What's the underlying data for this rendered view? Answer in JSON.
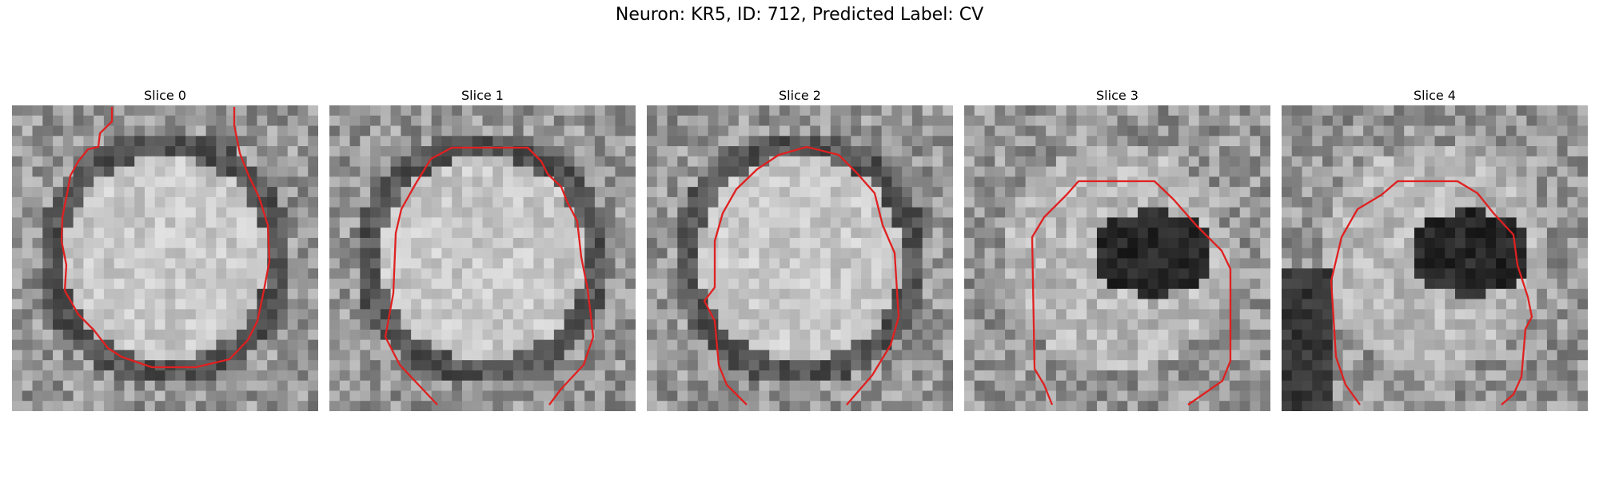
{
  "figure": {
    "title": "Neuron: KR5, ID: 712, Predicted Label: CV"
  },
  "contour_color": "#e02020",
  "panels": [
    {
      "title": "Slice 0",
      "seed": 11,
      "scene": "ring"
    },
    {
      "title": "Slice 1",
      "seed": 23,
      "scene": "ring"
    },
    {
      "title": "Slice 2",
      "seed": 37,
      "scene": "ring"
    },
    {
      "title": "Slice 3",
      "seed": 41,
      "scene": "blob"
    },
    {
      "title": "Slice 4",
      "seed": 53,
      "scene": "blob"
    }
  ]
}
